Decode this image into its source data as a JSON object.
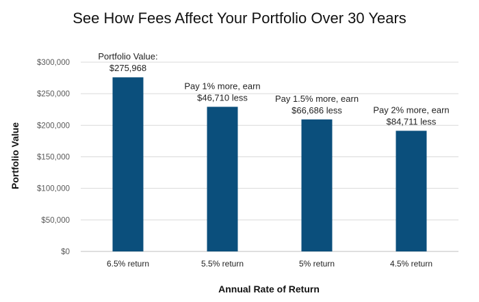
{
  "chart_data": {
    "type": "bar",
    "title": "See How Fees Affect Your Portfolio Over 30 Years",
    "xlabel": "Annual Rate of Return",
    "ylabel": "Portfolio Value",
    "categories": [
      "6.5% return",
      "5.5% return",
      "5% return",
      "4.5% return"
    ],
    "values": [
      275968,
      229258,
      209282,
      191257
    ],
    "ylim": [
      0,
      300000
    ],
    "yticks": [
      0,
      50000,
      100000,
      150000,
      200000,
      250000,
      300000
    ],
    "ytick_labels": [
      "$0",
      "$50,000",
      "$100,000",
      "$150,000",
      "$200,000",
      "$250,000",
      "$300,000"
    ],
    "bar_color": "#0b4f7c",
    "grid": true,
    "annotations": [
      [
        "Portfolio Value:",
        "$275,968"
      ],
      [
        "Pay 1% more, earn",
        "$46,710 less"
      ],
      [
        "Pay 1.5% more, earn",
        "$66,686 less"
      ],
      [
        "Pay 2% more, earn",
        "$84,711 less"
      ]
    ]
  }
}
